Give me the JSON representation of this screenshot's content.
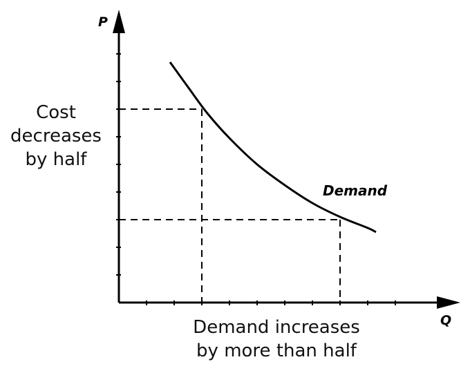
{
  "chart_data": {
    "type": "line",
    "title": "",
    "xlabel": "Q",
    "ylabel": "P",
    "xlim": [
      0,
      12.3
    ],
    "ylim": [
      0,
      10.4
    ],
    "grid": false,
    "series": [
      {
        "name": "Demand",
        "x": [
          1.85,
          2.5,
          3.2,
          4.0,
          5.0,
          6.0,
          7.0,
          8.0,
          9.0,
          9.3
        ],
        "y": [
          8.7,
          7.8,
          6.85,
          5.95,
          5.0,
          4.25,
          3.6,
          3.1,
          2.7,
          2.55
        ]
      }
    ],
    "reference_points": [
      {
        "x": 3.0,
        "y": 7.0
      },
      {
        "x": 8.0,
        "y": 3.0
      }
    ],
    "annotations": {
      "price_change": [
        "Cost",
        "decreases",
        "by half"
      ],
      "quantity_change": [
        "Demand increases",
        "by more than half"
      ]
    },
    "curve_label": "Demand"
  }
}
